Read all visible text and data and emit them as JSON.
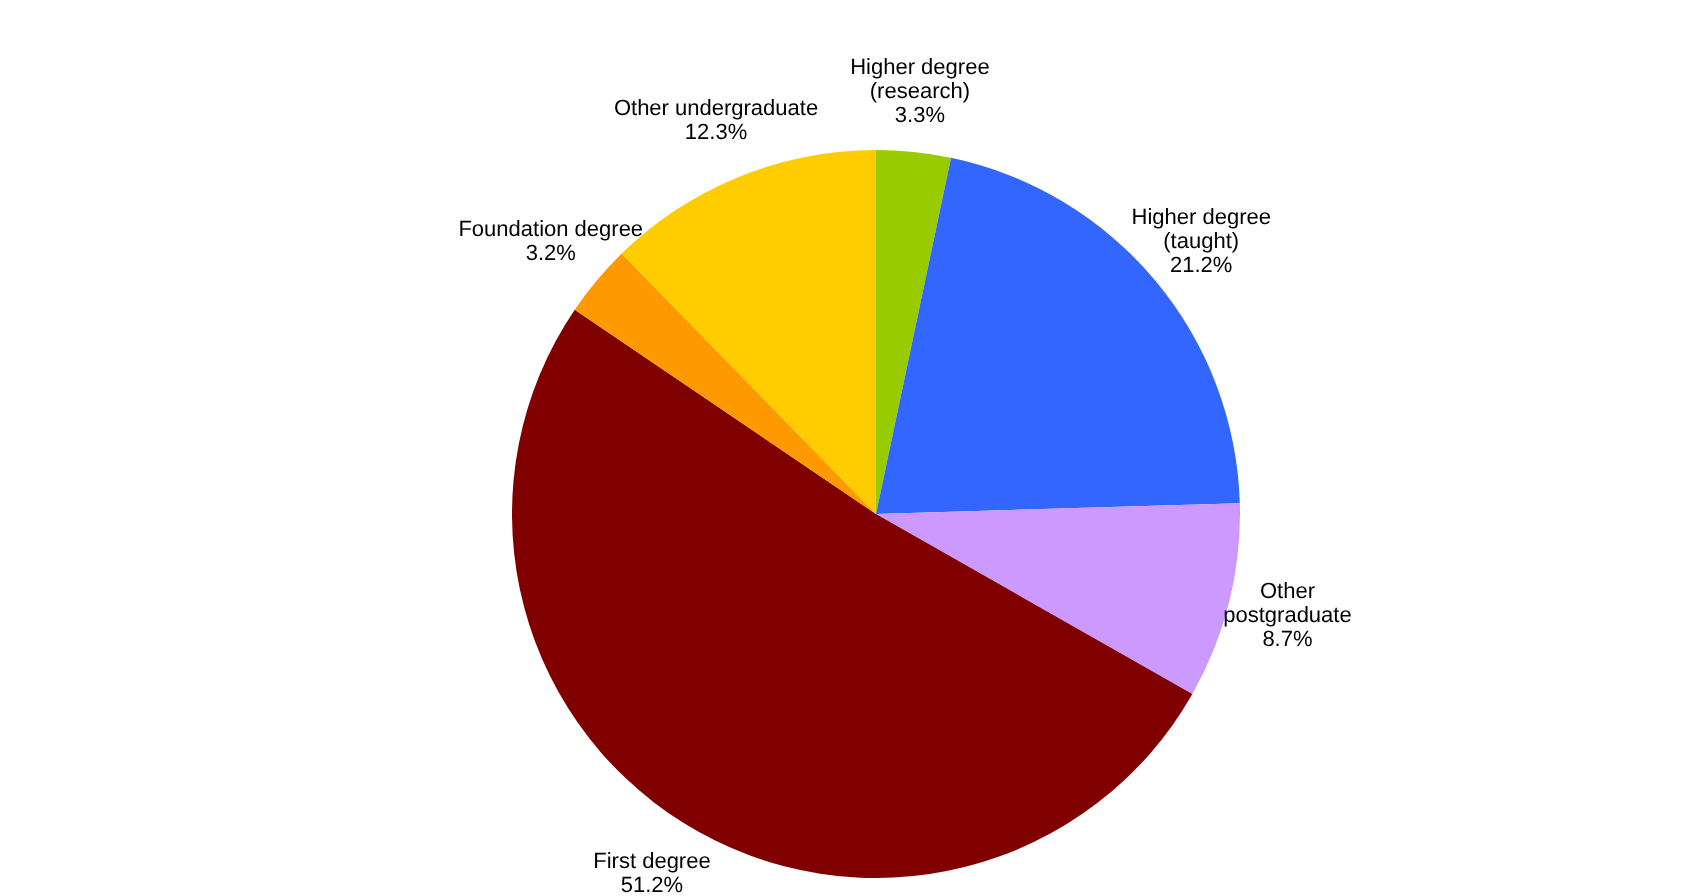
{
  "chart_data": {
    "type": "pie",
    "categories": [
      "Higher degree\n(research)",
      "Higher degree\n(taught)",
      "Other\npostgraduate",
      "First degree",
      "Foundation degree",
      "Other undergraduate"
    ],
    "values": [
      3.3,
      21.2,
      8.7,
      51.2,
      3.2,
      12.3
    ],
    "value_labels": [
      "3.3%",
      "21.2%",
      "8.7%",
      "51.2%",
      "3.2%",
      "12.3%"
    ],
    "colors": [
      "#99cc00",
      "#3366ff",
      "#cc99ff",
      "#800000",
      "#ff9900",
      "#ffcc00"
    ],
    "legend": false
  }
}
